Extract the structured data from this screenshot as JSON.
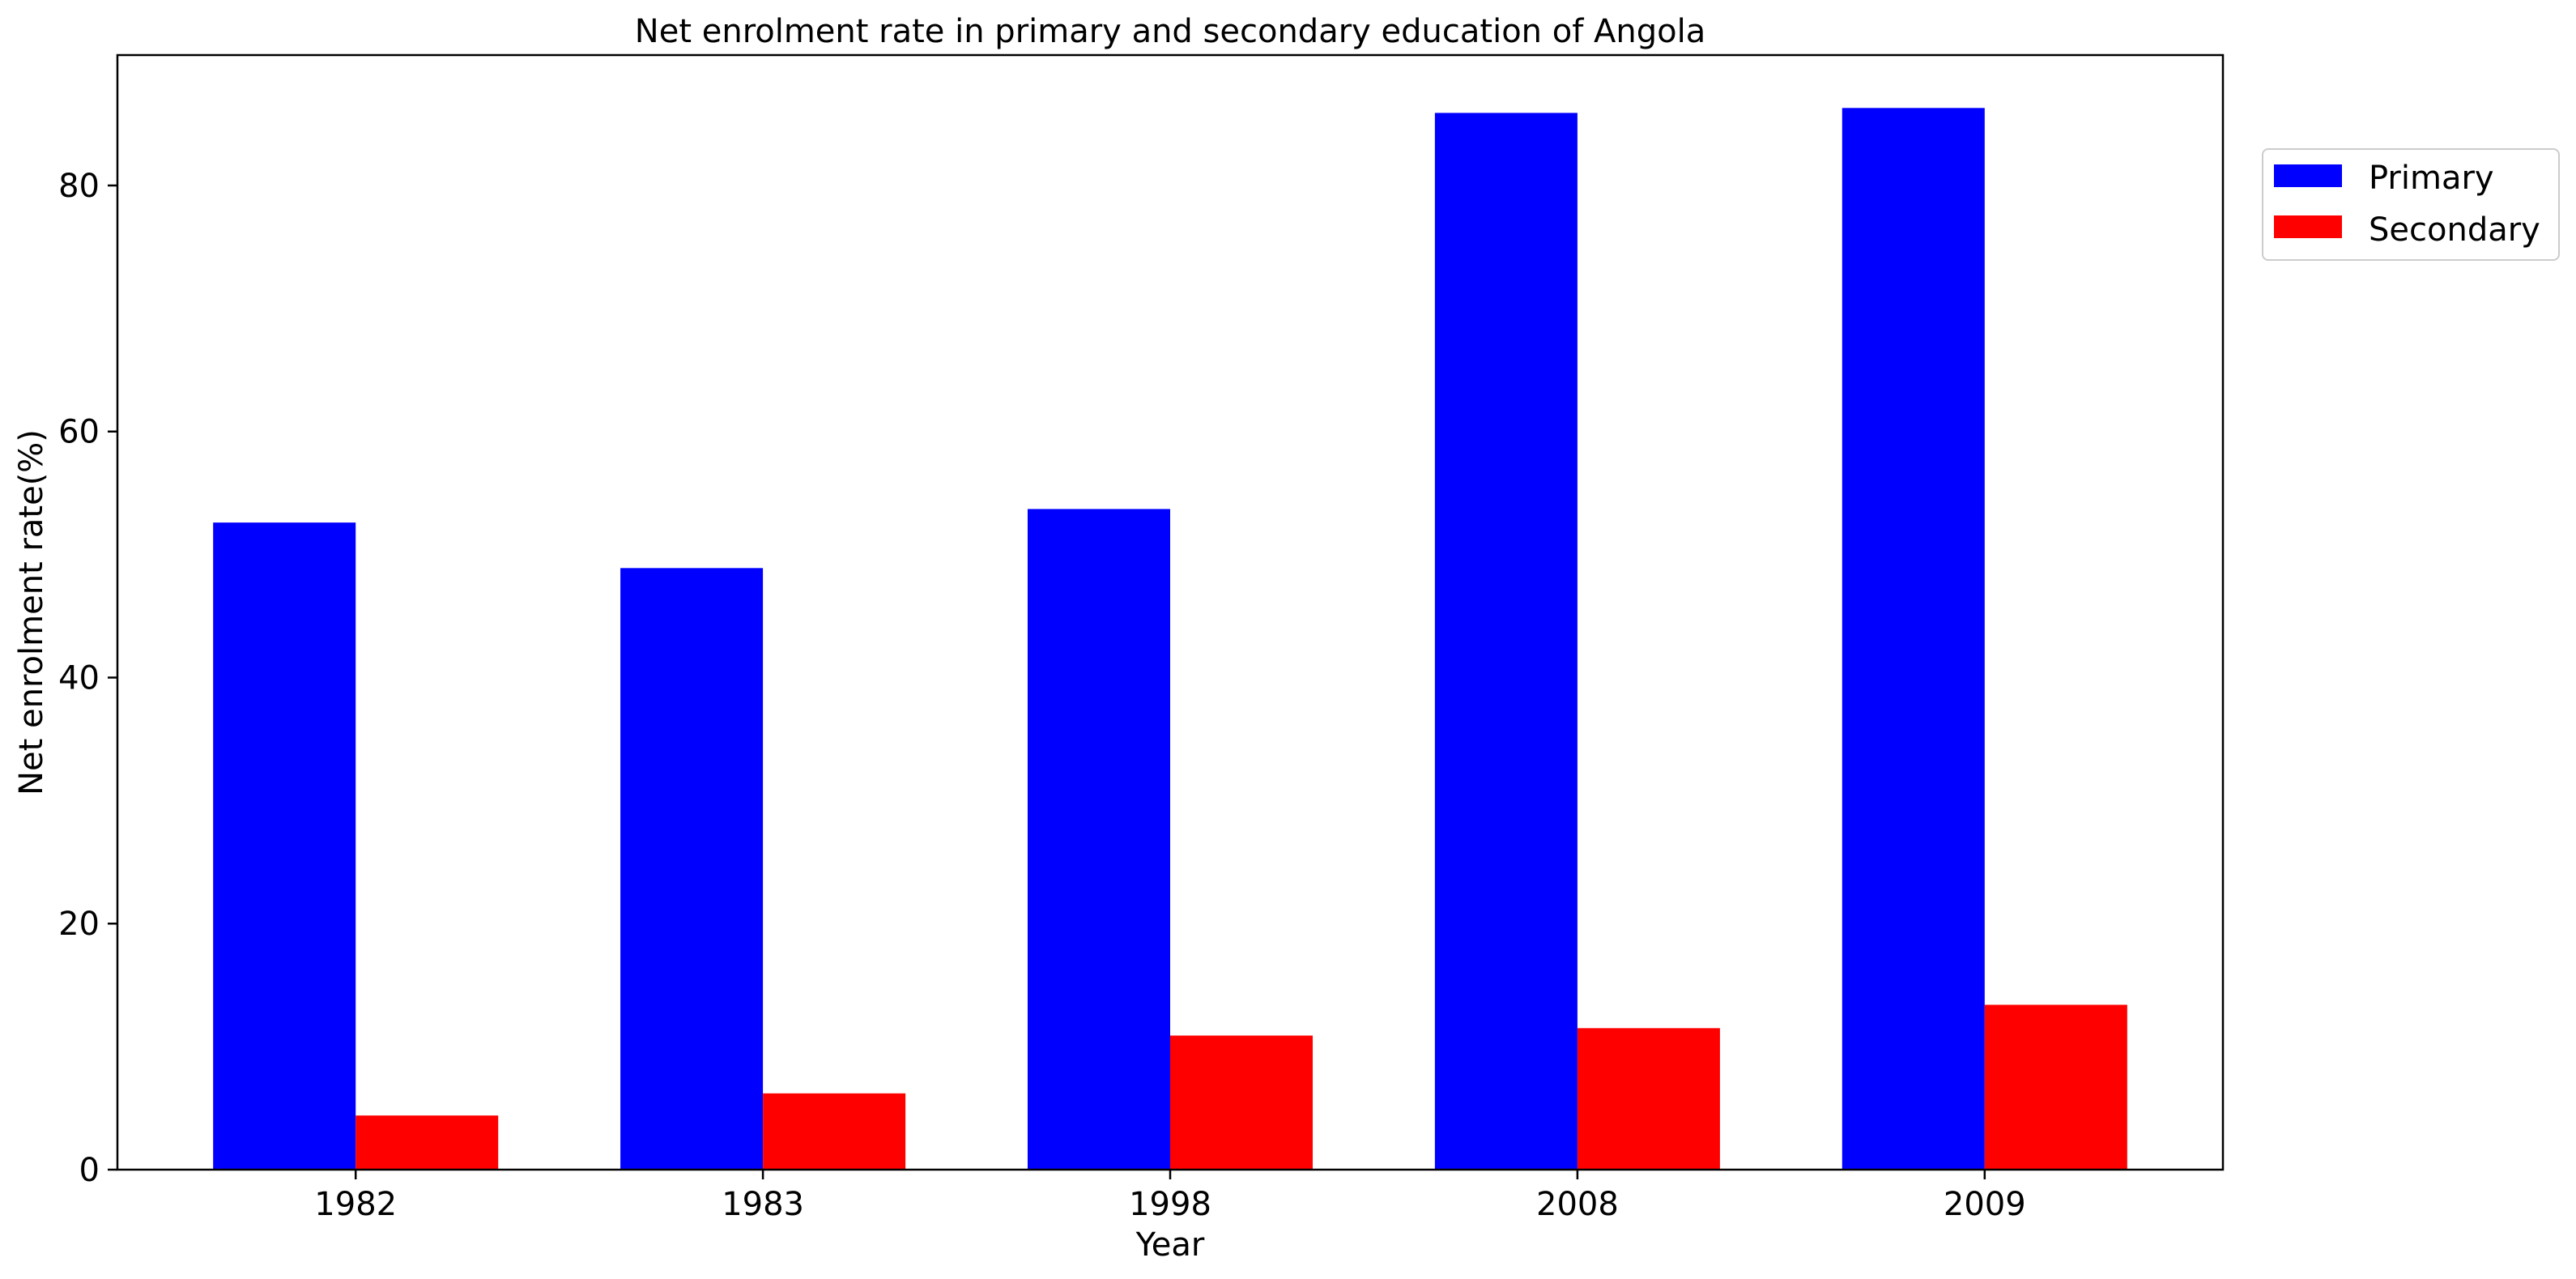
{
  "chart_data": {
    "type": "bar",
    "title": "Net enrolment rate in primary and secondary education of Angola",
    "xlabel": "Year",
    "ylabel": "Net enrolment rate(%)",
    "categories": [
      "1982",
      "1983",
      "1998",
      "2008",
      "2009"
    ],
    "series": [
      {
        "name": "Primary",
        "color": "#0000ff",
        "values": [
          52.6,
          48.9,
          53.7,
          85.9,
          86.3
        ]
      },
      {
        "name": "Secondary",
        "color": "#ff0000",
        "values": [
          4.4,
          6.2,
          10.9,
          11.5,
          13.4
        ]
      }
    ],
    "ylim": [
      0,
      90.6
    ],
    "yticks": [
      0,
      20,
      40,
      60,
      80
    ],
    "grid": false,
    "legend_position": "upper-right-outside"
  }
}
